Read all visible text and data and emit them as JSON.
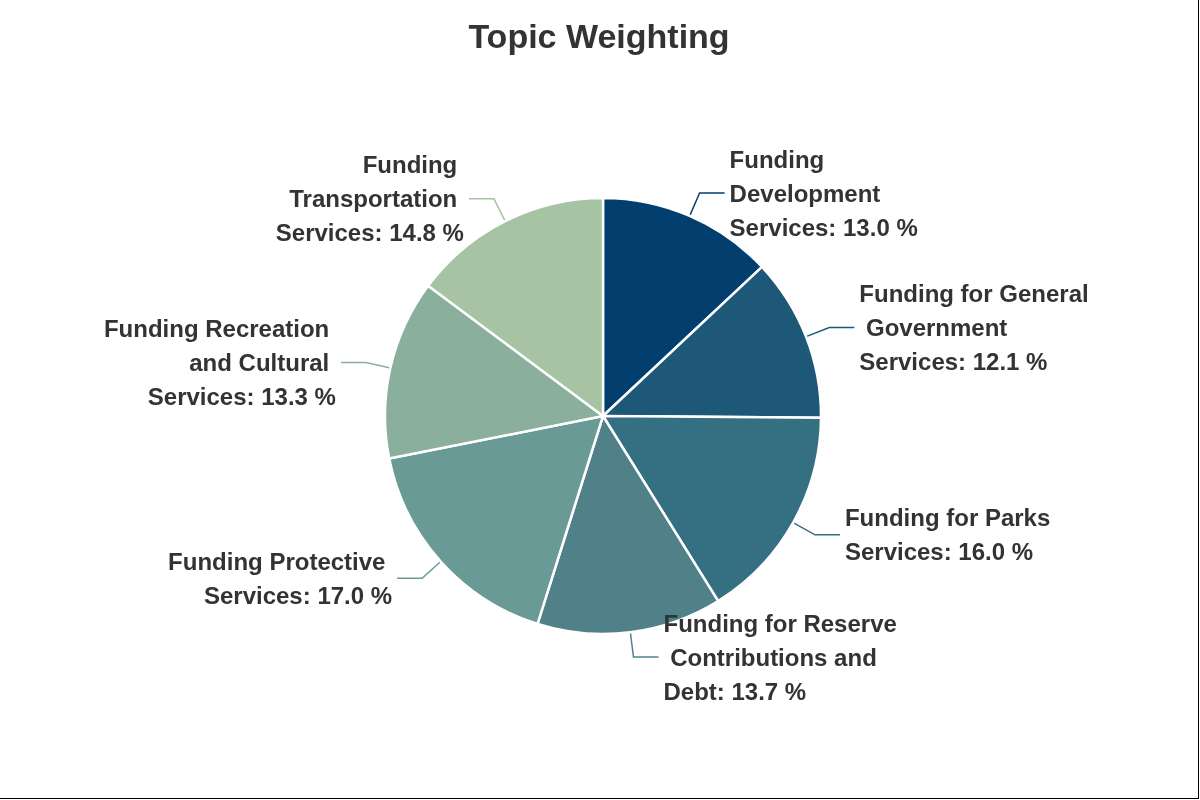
{
  "chart_data": {
    "type": "pie",
    "title": "Topic Weighting",
    "categories": [
      "Funding Development Services",
      "Funding for General Government Services",
      "Funding for Parks Services",
      "Funding for Reserve Contributions and Debt",
      "Funding Protective Services",
      "Funding Recreation and Cultural Services",
      "Funding Transportation Services"
    ],
    "values": [
      13.0,
      12.1,
      16.0,
      13.7,
      17.0,
      13.3,
      14.8
    ],
    "value_labels": [
      "13.0 %",
      "12.1 %",
      "16.0 %",
      "13.7 %",
      "17.0 %",
      "13.3 %",
      "14.8 %"
    ],
    "colors": [
      "#023f6e",
      "#1e5878",
      "#356f82",
      "#508189",
      "#6a9a96",
      "#8aaf9c",
      "#a6c3a3"
    ],
    "legend": false
  }
}
